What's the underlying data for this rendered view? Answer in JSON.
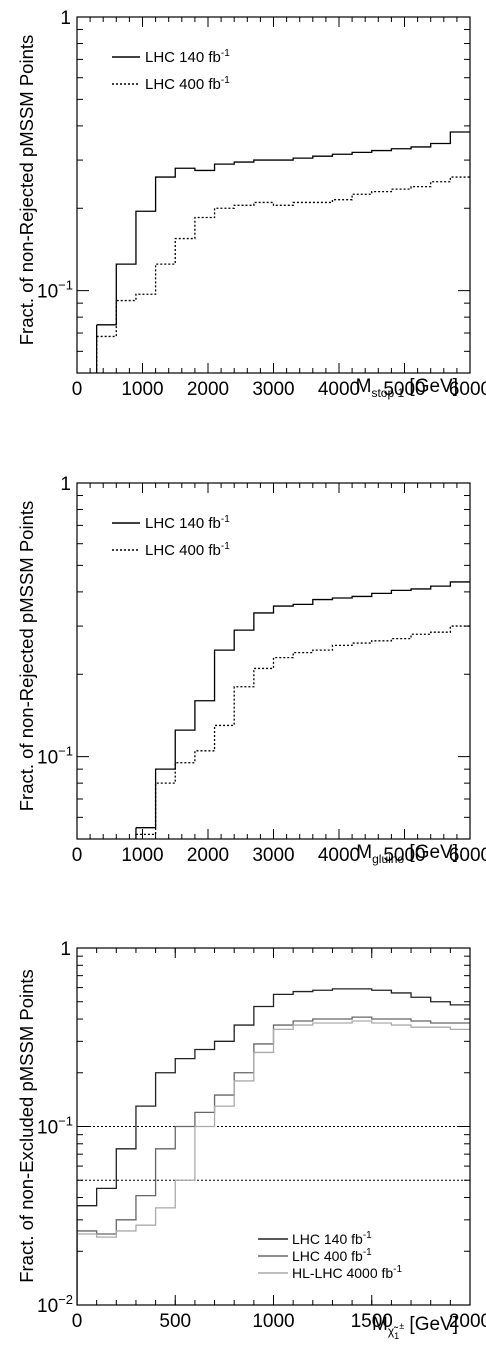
{
  "chart_data": [
    {
      "type": "line",
      "step": true,
      "yscale": "log",
      "ylim": [
        0.05,
        1
      ],
      "xlim": [
        0,
        6000
      ],
      "ylabel": "Fract. of non-Rejected pMSSM Points",
      "xlabel": {
        "main": "M",
        "sub": "stop 1",
        "unit": " [GeV]"
      },
      "xticks": [
        "0",
        "1000",
        "2000",
        "3000",
        "4000",
        "5000",
        "6000"
      ],
      "ytick_labels": [
        {
          "value": 1,
          "mantissa": "1",
          "exp": ""
        },
        {
          "value": 0.1,
          "mantissa": "10",
          "exp": "−1"
        }
      ],
      "legend": {
        "position": "top-left",
        "entries": [
          {
            "text": "LHC 140 fb",
            "sup": "-1",
            "style": "solid",
            "color": "#000000"
          },
          {
            "text": "LHC 400 fb",
            "sup": "-1",
            "style": "dotted",
            "color": "#000000"
          }
        ]
      },
      "series": [
        {
          "name": "LHC 140 fb-1",
          "edges": [
            300,
            600,
            900,
            1200,
            1500,
            1800,
            2100,
            2400,
            2700,
            3000,
            3300,
            3600,
            3900,
            4200,
            4500,
            4800,
            5100,
            5400,
            5700,
            6000
          ],
          "values": [
            0.075,
            0.125,
            0.195,
            0.26,
            0.28,
            0.275,
            0.29,
            0.295,
            0.3,
            0.3,
            0.305,
            0.31,
            0.315,
            0.32,
            0.325,
            0.33,
            0.335,
            0.345,
            0.38
          ]
        },
        {
          "name": "LHC 400 fb-1",
          "edges": [
            300,
            600,
            900,
            1200,
            1500,
            1800,
            2100,
            2400,
            2700,
            3000,
            3300,
            3600,
            3900,
            4200,
            4500,
            4800,
            5100,
            5400,
            5700,
            6000
          ],
          "values": [
            0.068,
            0.092,
            0.097,
            0.125,
            0.155,
            0.185,
            0.2,
            0.205,
            0.21,
            0.205,
            0.21,
            0.21,
            0.215,
            0.225,
            0.23,
            0.235,
            0.24,
            0.25,
            0.26
          ]
        }
      ]
    },
    {
      "type": "line",
      "step": true,
      "yscale": "log",
      "ylim": [
        0.05,
        1
      ],
      "xlim": [
        0,
        6000
      ],
      "ylabel": "Fract. of non-Rejected pMSSM Points",
      "xlabel": {
        "main": "M",
        "sub": "gluino",
        "unit": " [GeV]"
      },
      "xticks": [
        "0",
        "1000",
        "2000",
        "3000",
        "4000",
        "5000",
        "6000"
      ],
      "ytick_labels": [
        {
          "value": 1,
          "mantissa": "1",
          "exp": ""
        },
        {
          "value": 0.1,
          "mantissa": "10",
          "exp": "−1"
        }
      ],
      "legend": {
        "position": "top-left",
        "entries": [
          {
            "text": "LHC 140 fb",
            "sup": "-1",
            "style": "solid",
            "color": "#000000"
          },
          {
            "text": "LHC 400 fb",
            "sup": "-1",
            "style": "dotted",
            "color": "#000000"
          }
        ]
      },
      "series": [
        {
          "name": "LHC 140 fb-1",
          "edges": [
            900,
            1200,
            1500,
            1800,
            2100,
            2400,
            2700,
            3000,
            3300,
            3600,
            3900,
            4200,
            4500,
            4800,
            5100,
            5400,
            5700,
            6000
          ],
          "values": [
            0.055,
            0.09,
            0.125,
            0.16,
            0.245,
            0.29,
            0.335,
            0.355,
            0.36,
            0.375,
            0.38,
            0.385,
            0.395,
            0.405,
            0.41,
            0.42,
            0.435
          ]
        },
        {
          "name": "LHC 400 fb-1",
          "edges": [
            900,
            1200,
            1500,
            1800,
            2100,
            2400,
            2700,
            3000,
            3300,
            3600,
            3900,
            4200,
            4500,
            4800,
            5100,
            5400,
            5700,
            6000
          ],
          "values": [
            0.052,
            0.08,
            0.095,
            0.105,
            0.13,
            0.18,
            0.21,
            0.23,
            0.24,
            0.245,
            0.255,
            0.26,
            0.265,
            0.27,
            0.28,
            0.285,
            0.3
          ]
        }
      ]
    },
    {
      "type": "line",
      "step": true,
      "yscale": "log",
      "ylim": [
        0.01,
        1
      ],
      "xlim": [
        0,
        2000
      ],
      "ylabel": "Fract. of non-Excluded pMSSM Points",
      "xlabel": {
        "main": "M",
        "sub": "χ̃",
        "subsub": "1",
        "subsup": "±",
        "unit": " [GeV]"
      },
      "xticks": [
        "0",
        "500",
        "1000",
        "1500",
        "2000"
      ],
      "ytick_labels": [
        {
          "value": 1,
          "mantissa": "1",
          "exp": ""
        },
        {
          "value": 0.1,
          "mantissa": "10",
          "exp": "−1"
        },
        {
          "value": 0.01,
          "mantissa": "10",
          "exp": "−2"
        }
      ],
      "reference_lines": [
        0.1,
        0.05
      ],
      "legend": {
        "position": "bottom-right",
        "entries": [
          {
            "text": "LHC 140 fb",
            "sup": "-1",
            "style": "solid",
            "color": "#222222"
          },
          {
            "text": "LHC 400 fb",
            "sup": "-1",
            "style": "solid",
            "color": "#666666"
          },
          {
            "text": "HL-LHC 4000 fb",
            "sup": "-1",
            "style": "solid",
            "color": "#aaaaaa"
          }
        ]
      },
      "series": [
        {
          "name": "LHC 140 fb-1",
          "color": "#222222",
          "edges": [
            0,
            100,
            200,
            300,
            400,
            500,
            600,
            700,
            800,
            900,
            1000,
            1100,
            1200,
            1300,
            1400,
            1500,
            1600,
            1700,
            1800,
            1900,
            2000
          ],
          "values": [
            0.036,
            0.045,
            0.075,
            0.13,
            0.2,
            0.24,
            0.27,
            0.3,
            0.37,
            0.47,
            0.55,
            0.57,
            0.58,
            0.59,
            0.59,
            0.58,
            0.56,
            0.53,
            0.5,
            0.48
          ]
        },
        {
          "name": "LHC 400 fb-1",
          "color": "#666666",
          "edges": [
            0,
            100,
            200,
            300,
            400,
            500,
            600,
            700,
            800,
            900,
            1000,
            1100,
            1200,
            1300,
            1400,
            1500,
            1600,
            1700,
            1800,
            1900,
            2000
          ],
          "values": [
            0.026,
            0.025,
            0.03,
            0.041,
            0.075,
            0.1,
            0.12,
            0.15,
            0.2,
            0.29,
            0.37,
            0.39,
            0.4,
            0.4,
            0.41,
            0.4,
            0.4,
            0.39,
            0.38,
            0.38
          ]
        },
        {
          "name": "HL-LHC 4000 fb-1",
          "color": "#aaaaaa",
          "edges": [
            0,
            100,
            200,
            300,
            400,
            500,
            600,
            700,
            800,
            900,
            1000,
            1100,
            1200,
            1300,
            1400,
            1500,
            1600,
            1700,
            1800,
            1900,
            2000
          ],
          "values": [
            0.025,
            0.024,
            0.026,
            0.028,
            0.035,
            0.05,
            0.1,
            0.13,
            0.18,
            0.26,
            0.35,
            0.37,
            0.38,
            0.38,
            0.39,
            0.38,
            0.37,
            0.36,
            0.36,
            0.35
          ]
        }
      ]
    }
  ]
}
